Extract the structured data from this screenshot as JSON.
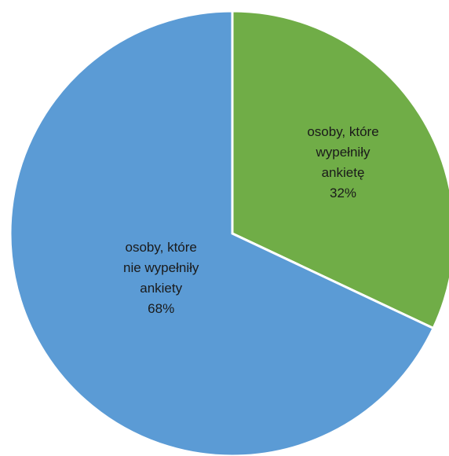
{
  "chart_data": {
    "type": "pie",
    "start_angle_deg": 0,
    "direction": "clockwise",
    "slices": [
      {
        "label_lines": [
          "osoby, które",
          "wypełniły",
          "ankietę"
        ],
        "value": 32,
        "value_label": "32%",
        "color": "#70ad47"
      },
      {
        "label_lines": [
          "osoby, które",
          "nie wypełniły",
          "ankiety"
        ],
        "value": 68,
        "value_label": "68%",
        "color": "#5b9bd5"
      }
    ],
    "slice_border_color": "#ffffff",
    "legend": "none"
  }
}
